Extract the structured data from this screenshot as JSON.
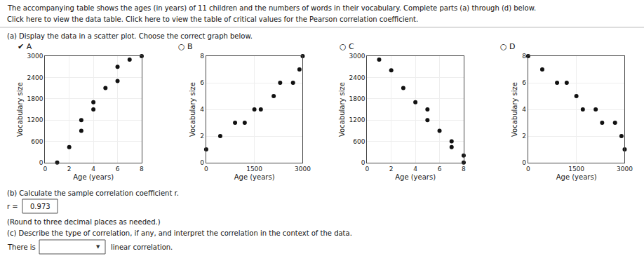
{
  "title": "The accompanying table shows the ages (in years) of 11 children and the numbers of words in their vocabulary. Complete parts (a) through (d) below.",
  "subtitle": "Click here to view the data table. Click here to view the table of critical values for the Pearson correlation coefficient.",
  "annotations": [
    "(a) Display the data in a scatter plot. Choose the correct graph below.",
    "(b) Calculate the sample correlation coefficient r.",
    "r =",
    "0.973",
    "(Round to three decimal places as needed.)",
    "(c) Describe the type of correlation, if any, and interpret the correlation in the context of the data.",
    "There is",
    "▼",
    "linear correlation."
  ],
  "chart_data": [
    {
      "type": "scatter",
      "title": "✔ A",
      "xlabel": "Age (years)",
      "ylabel": "Vocabulary size",
      "x": [
        1,
        2,
        3,
        3,
        4,
        4,
        5,
        6,
        6,
        7,
        8
      ],
      "values": [
        3,
        440,
        900,
        1200,
        1500,
        1700,
        2100,
        2300,
        2700,
        2900,
        3000
      ],
      "xlim": [
        0,
        8
      ],
      "ylim": [
        0,
        3000
      ],
      "xticks": [
        0,
        2,
        4,
        6,
        8
      ],
      "yticks": [
        0,
        600,
        1200,
        1800,
        2400,
        3000
      ],
      "grid": true,
      "color": "#111111"
    },
    {
      "type": "scatter",
      "title": "○ B",
      "xlabel": "Age (years)",
      "ylabel": "Vocabulary size",
      "x": [
        3,
        440,
        900,
        1200,
        1500,
        1700,
        2100,
        2300,
        2700,
        2900,
        3000
      ],
      "values": [
        1,
        2,
        3,
        3,
        4,
        4,
        5,
        6,
        6,
        7,
        8
      ],
      "xlim": [
        0,
        3000
      ],
      "ylim": [
        0,
        8
      ],
      "xticks": [
        0,
        1500,
        3000
      ],
      "yticks": [
        0,
        2,
        4,
        6,
        8
      ],
      "grid": true,
      "color": "#111111"
    },
    {
      "type": "scatter",
      "title": "○ C",
      "xlabel": "Age (years)",
      "ylabel": "Vocabulary size",
      "x": [
        1,
        2,
        3,
        4,
        5,
        5,
        6,
        7,
        7,
        8,
        8
      ],
      "values": [
        2900,
        2600,
        2100,
        1700,
        1500,
        1200,
        900,
        600,
        440,
        200,
        3
      ],
      "xlim": [
        0,
        8
      ],
      "ylim": [
        0,
        3000
      ],
      "xticks": [
        0,
        2,
        4,
        6,
        8
      ],
      "yticks": [
        0,
        600,
        1200,
        1800,
        2400,
        3000
      ],
      "grid": true,
      "color": "#111111"
    },
    {
      "type": "scatter",
      "title": "○ D",
      "xlabel": "Age (years)",
      "ylabel": "Vocabulary size",
      "x": [
        3,
        440,
        900,
        1200,
        1500,
        1700,
        2100,
        2300,
        2700,
        2900,
        3000
      ],
      "values": [
        8,
        7,
        6,
        6,
        5,
        4,
        4,
        3,
        3,
        2,
        1
      ],
      "xlim": [
        0,
        3000
      ],
      "ylim": [
        0,
        8
      ],
      "xticks": [
        0,
        1500,
        3000
      ],
      "yticks": [
        0,
        2,
        4,
        6,
        8
      ],
      "grid": true,
      "color": "#111111"
    }
  ]
}
